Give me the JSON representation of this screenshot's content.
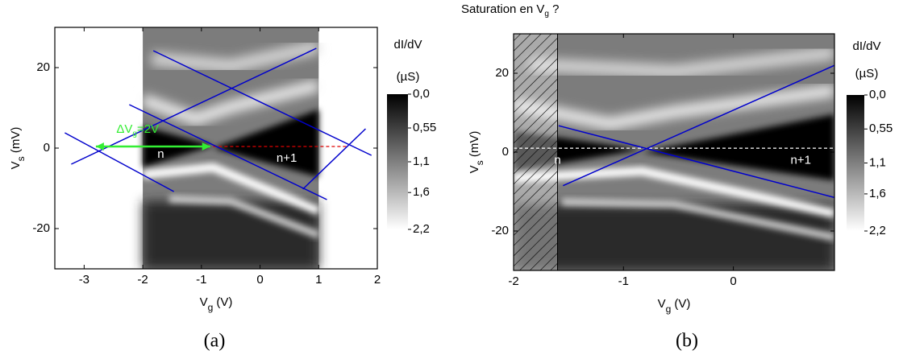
{
  "chart_data": [
    {
      "type": "heatmap",
      "xlabel": [
        "V",
        "g",
        " (V)"
      ],
      "ylabel": [
        "V",
        "s",
        " (mV)"
      ],
      "xlim": [
        -3.5,
        2
      ],
      "ylim": [
        -30,
        30
      ],
      "xticks": [
        -3,
        -2,
        -1,
        0,
        1,
        2
      ],
      "yticks": [
        -20,
        0,
        20
      ],
      "image_xlim": [
        -2,
        1
      ],
      "colorbar": {
        "title": [
          "dI/dV",
          "(µS)"
        ],
        "lim": [
          0,
          2.2
        ],
        "ticks": [
          {
            "value": 0,
            "label": "0,0"
          },
          {
            "value": 0.55,
            "label": "0,55"
          },
          {
            "value": 1.1,
            "label": "1,1"
          },
          {
            "value": 1.6,
            "label": "1,6"
          },
          {
            "value": 2.2,
            "label": "2,2"
          }
        ]
      },
      "lines": [
        {
          "color": "#0000cc",
          "x": [
            -1.82,
            1.9
          ],
          "y": [
            24.2,
            -1.8
          ]
        },
        {
          "color": "#0000cc",
          "x": [
            -3.22,
            0.96
          ],
          "y": [
            -4,
            24.8
          ]
        },
        {
          "color": "#0000cc",
          "x": [
            -3.33,
            -1.47
          ],
          "y": [
            3.8,
            -10.8
          ]
        },
        {
          "color": "#0000cc",
          "x": [
            -2.23,
            1.14
          ],
          "y": [
            10.8,
            -12.8
          ]
        },
        {
          "color": "#0000cc",
          "x": [
            0.73,
            1.8
          ],
          "y": [
            -10.2,
            4.8
          ]
        }
      ],
      "dashed": {
        "color": "#dd0000",
        "x": [
          -0.8,
          1.5
        ],
        "y": [
          0.4,
          0.4
        ]
      },
      "arrow": {
        "color": "#33ee33",
        "x": [
          -2.8,
          -0.85
        ],
        "y": [
          0.4,
          0.4
        ]
      },
      "annotations": [
        {
          "text": [
            "ΔV",
            "g",
            "=2V"
          ],
          "x": -2.45,
          "y": 4.6,
          "color": "#33ee33"
        },
        {
          "text": "n",
          "x": -1.75,
          "y": -1.6,
          "color": "#ffffff"
        },
        {
          "text": "n+1",
          "x": 0.28,
          "y": -2.6,
          "color": "#ffffff"
        }
      ],
      "caption": "(a)"
    },
    {
      "type": "heatmap",
      "title": [
        "Saturation en V",
        "g",
        " ?"
      ],
      "xlabel": [
        "V",
        "g",
        " (V)"
      ],
      "ylabel": [
        "V",
        "s",
        " (mV)"
      ],
      "xlim": [
        -2,
        0.92
      ],
      "ylim": [
        -30,
        30
      ],
      "xticks": [
        -2,
        -1,
        0
      ],
      "yticks": [
        -20,
        0,
        20
      ],
      "image_xlim": [
        -2,
        0.92
      ],
      "hatch_xlim": [
        -2,
        -1.6
      ],
      "colorbar": {
        "title": [
          "dI/dV",
          "(µS)"
        ],
        "lim": [
          0,
          2.2
        ],
        "ticks": [
          {
            "value": 0,
            "label": "0,0"
          },
          {
            "value": 0.55,
            "label": "0,55"
          },
          {
            "value": 1.1,
            "label": "1,1"
          },
          {
            "value": 1.6,
            "label": "1,6"
          },
          {
            "value": 2.2,
            "label": "2,2"
          }
        ]
      },
      "lines": [
        {
          "color": "#0000cc",
          "x": [
            -1.59,
            0.92
          ],
          "y": [
            6.7,
            -11.5
          ]
        },
        {
          "color": "#0000cc",
          "x": [
            -1.55,
            0.92
          ],
          "y": [
            -8.5,
            22
          ]
        }
      ],
      "dashed": {
        "color": "#ffffff",
        "x": [
          -2,
          0.92
        ],
        "y": [
          1,
          1
        ]
      },
      "annotations": [
        {
          "text": "n",
          "x": -1.63,
          "y": -2.2,
          "color": "#ffffff"
        },
        {
          "text": "n+1",
          "x": 0.52,
          "y": -2.2,
          "color": "#ffffff"
        }
      ],
      "caption": "(b)"
    }
  ]
}
